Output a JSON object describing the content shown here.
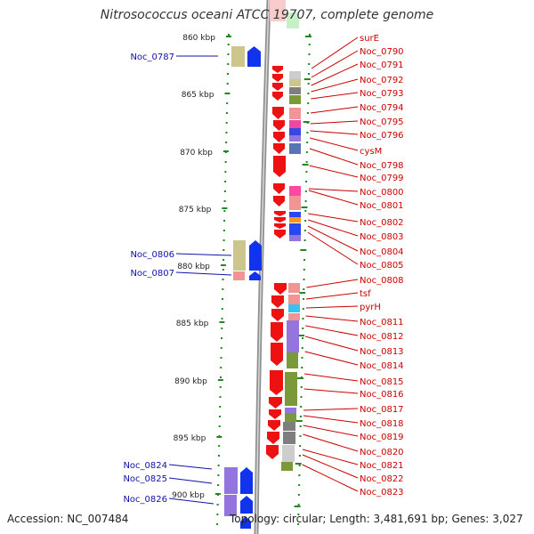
{
  "title": "Nitrosococcus oceani ATCC 19707, complete genome",
  "accession_label": "Accession: NC_007484",
  "topology_label": "Topology: circular; Length: 3,481,691 bp; Genes: 3,027",
  "colors": {
    "forward": "#ee1111",
    "reverse": "#1133ee",
    "left_label": "#1111aa",
    "right_label": "#cc0000",
    "backbone": "#909090",
    "tick": "#228822"
  },
  "scale": {
    "unit": "kbp",
    "labels": [
      "860 kbp",
      "865 kbp",
      "870 kbp",
      "875 kbp",
      "880 kbp",
      "885 kbp",
      "890 kbp",
      "895 kbp",
      "900 kbp"
    ]
  },
  "left_genes": [
    "Noc_0787",
    "Noc_0806",
    "Noc_0807",
    "Noc_0824",
    "Noc_0825",
    "Noc_0826"
  ],
  "right_genes": [
    "surE",
    "Noc_0790",
    "Noc_0791",
    "Noc_0792",
    "Noc_0793",
    "Noc_0794",
    "Noc_0795",
    "Noc_0796",
    "cysM",
    "Noc_0798",
    "Noc_0799",
    "Noc_0800",
    "Noc_0801",
    "Noc_0802",
    "Noc_0803",
    "Noc_0804",
    "Noc_0805",
    "Noc_0808",
    "tsf",
    "pyrH",
    "Noc_0811",
    "Noc_0812",
    "Noc_0813",
    "Noc_0814",
    "Noc_0815",
    "Noc_0816",
    "Noc_0817",
    "Noc_0818",
    "Noc_0819",
    "Noc_0820",
    "Noc_0821",
    "Noc_0822",
    "Noc_0823"
  ]
}
